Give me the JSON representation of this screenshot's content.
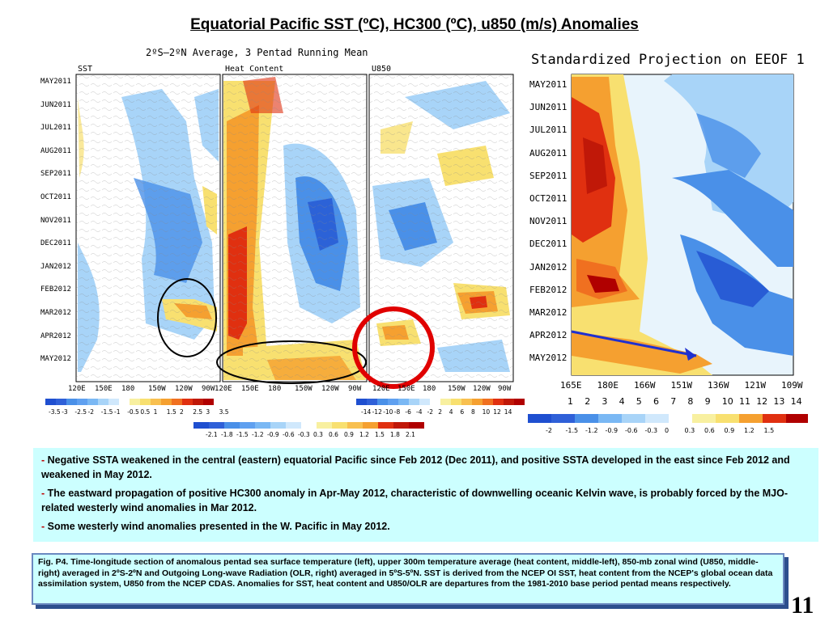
{
  "title": "Equatorial Pacific SST (ºC), HC300 (ºC), u850  (m/s) Anomalies",
  "left_figure": {
    "subtitle": "2ºS–2ºN Average, 3 Pentad Running Mean",
    "panels": [
      "SST",
      "Heat Content",
      "U850"
    ],
    "y_labels": [
      "MAY2011",
      "JUN2011",
      "JUL2011",
      "AUG2011",
      "SEP2011",
      "OCT2011",
      "NOV2011",
      "DEC2011",
      "JAN2012",
      "FEB2012",
      "MAR2012",
      "APR2012",
      "MAY2012"
    ],
    "sst_x": [
      "120E",
      "150E",
      "180",
      "150W",
      "120W",
      "90W"
    ],
    "hc_x": [
      "120E",
      "150E",
      "180",
      "150W",
      "120W",
      "90W"
    ],
    "u_x": [
      "120E",
      "150E",
      "180",
      "150W",
      "120W",
      "90W"
    ],
    "sst_colorbar": [
      "-3.5",
      "-3",
      "-2.5",
      "-2",
      "-1.5",
      "-1",
      "-0.5",
      "0.5",
      "1",
      "1.5",
      "2",
      "2.5",
      "3",
      "3.5"
    ],
    "hc_colorbar": [
      "-2.1",
      "-1.8",
      "-1.5",
      "-1.2",
      "-0.9",
      "-0.6",
      "-0.3",
      "0.3",
      "0.6",
      "0.9",
      "1.2",
      "1.5",
      "1.8",
      "2.1"
    ],
    "u_colorbar": [
      "-14",
      "-12",
      "-10",
      "-8",
      "-6",
      "-4",
      "-2",
      "2",
      "4",
      "6",
      "8",
      "10",
      "12",
      "14"
    ]
  },
  "right_figure": {
    "title": "Standardized Projection on EEOF 1",
    "y_labels": [
      "MAY2011",
      "JUN2011",
      "JUL2011",
      "AUG2011",
      "SEP2011",
      "OCT2011",
      "NOV2011",
      "DEC2011",
      "JAN2012",
      "FEB2012",
      "MAR2012",
      "APR2012",
      "MAY2012"
    ],
    "x_labels": [
      "165E",
      "180E",
      "166W",
      "151W",
      "136W",
      "121W",
      "109W"
    ],
    "x_numbers": [
      "1",
      "2",
      "3",
      "4",
      "5",
      "6",
      "7",
      "8",
      "9",
      "10",
      "11",
      "12",
      "13",
      "14"
    ],
    "colorbar": [
      "-2",
      "-1.5",
      "-1.2",
      "-0.9",
      "-0.6",
      "-0.3",
      "0",
      "0.3",
      "0.6",
      "0.9",
      "1.2",
      "1.5"
    ]
  },
  "notes": [
    "Negative SSTA weakened  in the central  (eastern) equatorial Pacific since Feb 2012 (Dec 2011), and positive SSTA developed in the east  since Feb 2012 and weakened in May 2012.",
    "The eastward propagation of positive HC300 anomaly in Apr-May 2012, characteristic of downwelling oceanic Kelvin wave, is probably forced by the MJO-related westerly wind anomalies in Mar 2012.",
    "Some westerly wind anomalies presented in the W. Pacific in May  2012."
  ],
  "caption": "Fig. P4. Time-longitude section of anomalous pentad sea surface temperature (left), upper 300m temperature average (heat content, middle-left), 850-mb zonal wind (U850, middle-right) averaged in 2ºS-2ºN and Outgoing Long-wave Radiation (OLR, right) averaged in 5ºS-5ºN. SST is derived from the NCEP OI SST, heat content from the NCEP's global ocean data assimilation system, U850 from the NCEP CDAS. Anomalies for SST, heat content and U850/OLR are departures from the 1981-2010 base period pentad means respectively.",
  "page_number": "11",
  "colors": {
    "blue_dark": "#1f4fd0",
    "blue": "#4a90e8",
    "blue_light": "#a8d4f8",
    "yellow": "#f8e070",
    "orange": "#f5a030",
    "red": "#e03010",
    "red_dark": "#b00000",
    "note_bg": "#ccffff"
  },
  "chart_data": [
    {
      "type": "heatmap",
      "name": "SST",
      "x": [
        "120E",
        "150E",
        "180",
        "150W",
        "120W",
        "90W"
      ],
      "y": [
        "MAY2011",
        "JUN2011",
        "JUL2011",
        "AUG2011",
        "SEP2011",
        "OCT2011",
        "NOV2011",
        "DEC2011",
        "JAN2012",
        "FEB2012",
        "MAR2012",
        "APR2012",
        "MAY2012"
      ],
      "colorbar": [
        -3.5,
        -3,
        -2.5,
        -2,
        -1.5,
        -1,
        -0.5,
        0.5,
        1,
        1.5,
        2,
        2.5,
        3,
        3.5
      ]
    },
    {
      "type": "heatmap",
      "name": "Heat Content",
      "x": [
        "120E",
        "150E",
        "180",
        "150W",
        "120W",
        "90W"
      ],
      "y": [
        "MAY2011",
        "JUN2011",
        "JUL2011",
        "AUG2011",
        "SEP2011",
        "OCT2011",
        "NOV2011",
        "DEC2011",
        "JAN2012",
        "FEB2012",
        "MAR2012",
        "APR2012",
        "MAY2012"
      ],
      "colorbar": [
        -2.1,
        -1.8,
        -1.5,
        -1.2,
        -0.9,
        -0.6,
        -0.3,
        0.3,
        0.6,
        0.9,
        1.2,
        1.5,
        1.8,
        2.1
      ]
    },
    {
      "type": "heatmap",
      "name": "U850",
      "x": [
        "120E",
        "150E",
        "180",
        "150W",
        "120W",
        "90W"
      ],
      "y": [
        "MAY2011",
        "JUN2011",
        "JUL2011",
        "AUG2011",
        "SEP2011",
        "OCT2011",
        "NOV2011",
        "DEC2011",
        "JAN2012",
        "FEB2012",
        "MAR2012",
        "APR2012",
        "MAY2012"
      ],
      "colorbar": [
        -14,
        -12,
        -10,
        -8,
        -6,
        -4,
        -2,
        2,
        4,
        6,
        8,
        10,
        12,
        14
      ]
    },
    {
      "type": "heatmap",
      "name": "Standardized Projection on EEOF 1",
      "x": [
        "165E",
        "180E",
        "166W",
        "151W",
        "136W",
        "121W",
        "109W"
      ],
      "y": [
        "MAY2011",
        "JUN2011",
        "JUL2011",
        "AUG2011",
        "SEP2011",
        "OCT2011",
        "NOV2011",
        "DEC2011",
        "JAN2012",
        "FEB2012",
        "MAR2012",
        "APR2012",
        "MAY2012"
      ],
      "colorbar": [
        -2,
        -1.5,
        -1.2,
        -0.9,
        -0.6,
        -0.3,
        0,
        0.3,
        0.6,
        0.9,
        1.2,
        1.5
      ]
    }
  ]
}
